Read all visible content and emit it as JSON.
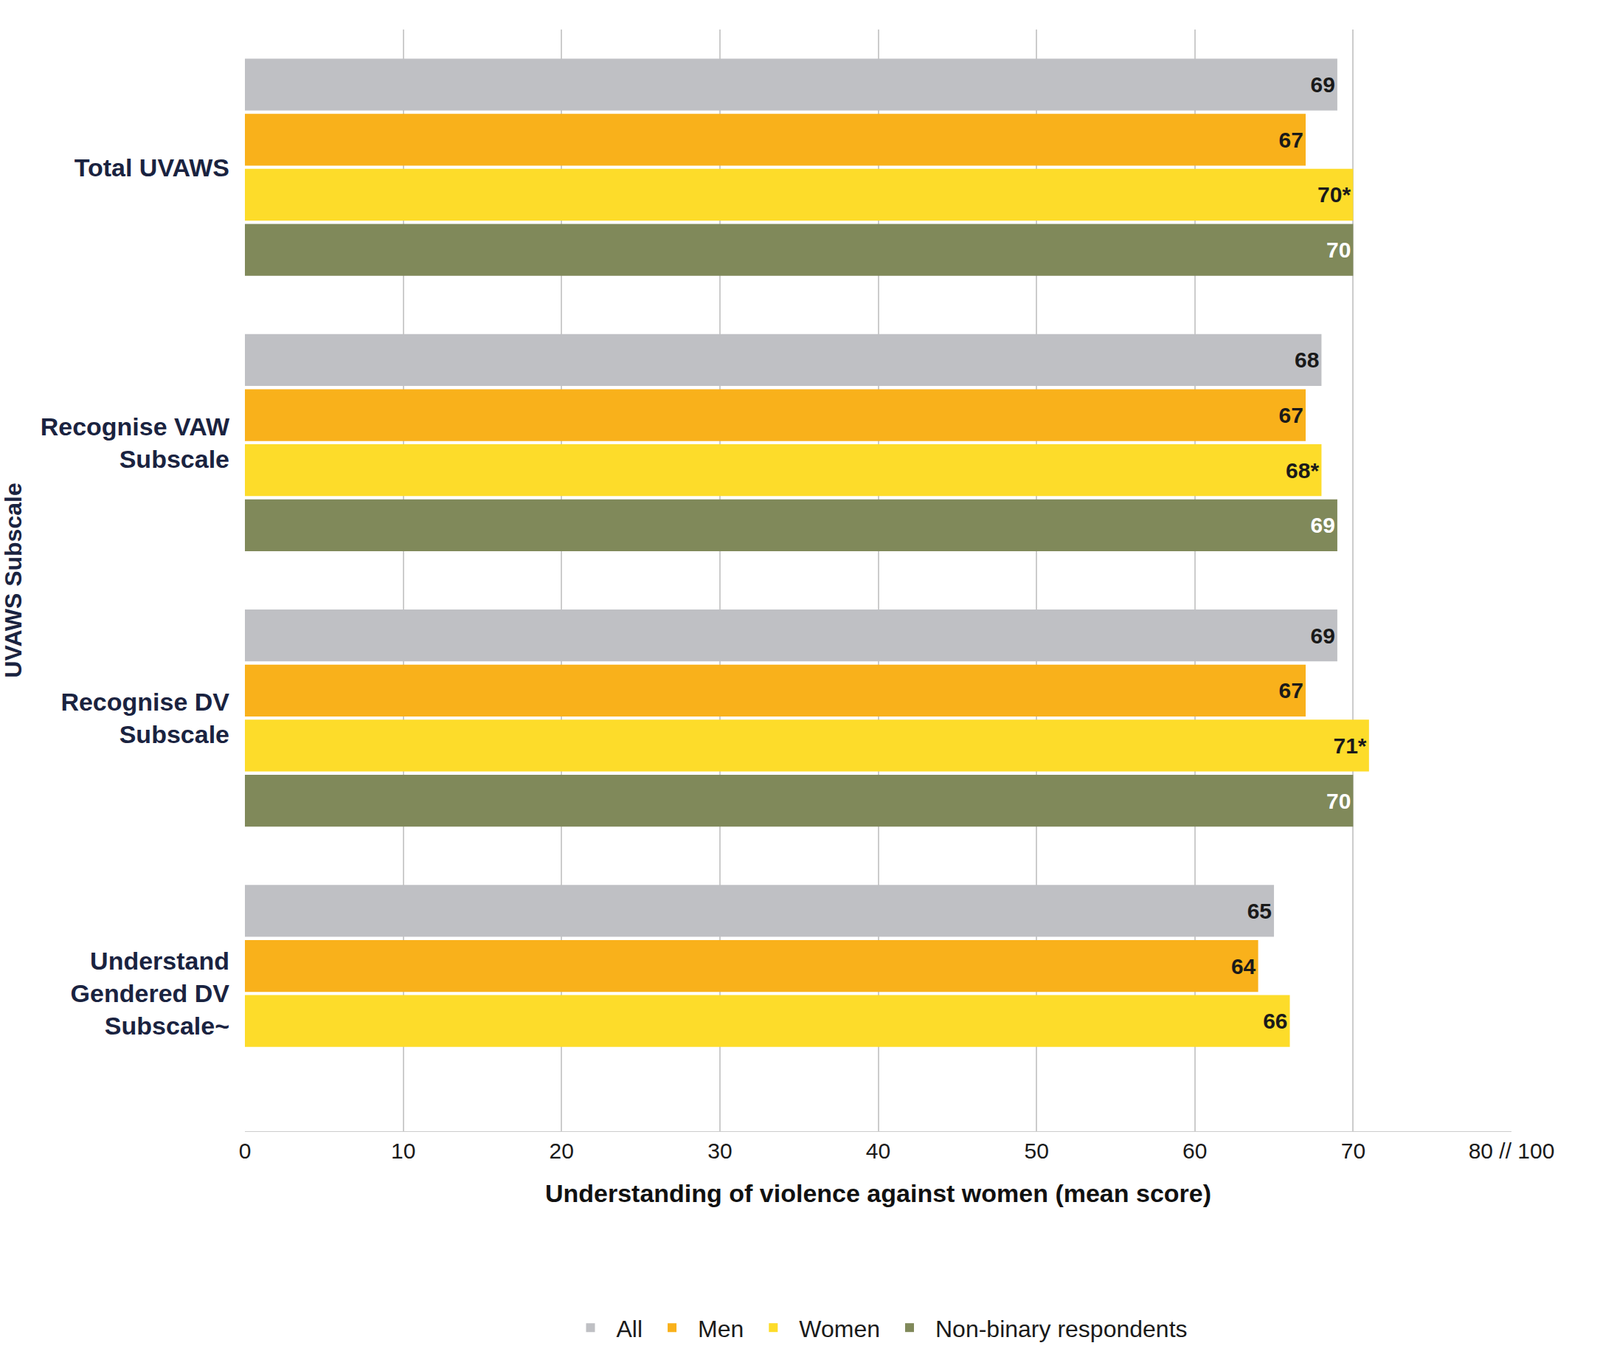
{
  "chart_data": {
    "type": "bar",
    "orientation": "horizontal",
    "x_label": "Understanding of violence against women (mean score)",
    "y_label": "UVAWS Subscale",
    "categories": [
      "Total UVAWS",
      "Recognise VAW Subscale",
      "Recognise DV Subscale",
      "Understand Gendered DV Subscale~"
    ],
    "series": [
      {
        "name": "All",
        "color": "#bfc0c4",
        "values": [
          69,
          68,
          69,
          65
        ]
      },
      {
        "name": "Men",
        "color": "#f9b11b",
        "values": [
          67,
          67,
          67,
          64
        ]
      },
      {
        "name": "Women",
        "color": "#fddc2a",
        "values": [
          70,
          68,
          71,
          66
        ],
        "value_labels": [
          "70*",
          "68*",
          "71*",
          "66"
        ]
      },
      {
        "name": "Non-binary respondents",
        "color": "#80895a",
        "values": [
          70,
          69,
          70,
          null
        ]
      }
    ],
    "xlim": [
      0,
      80
    ],
    "xticks": [
      0,
      10,
      20,
      30,
      40,
      50,
      60,
      70,
      {
        "value": 80,
        "label": "80 // 100"
      }
    ],
    "grid": true,
    "data_labels": true,
    "legend": "bottom"
  }
}
